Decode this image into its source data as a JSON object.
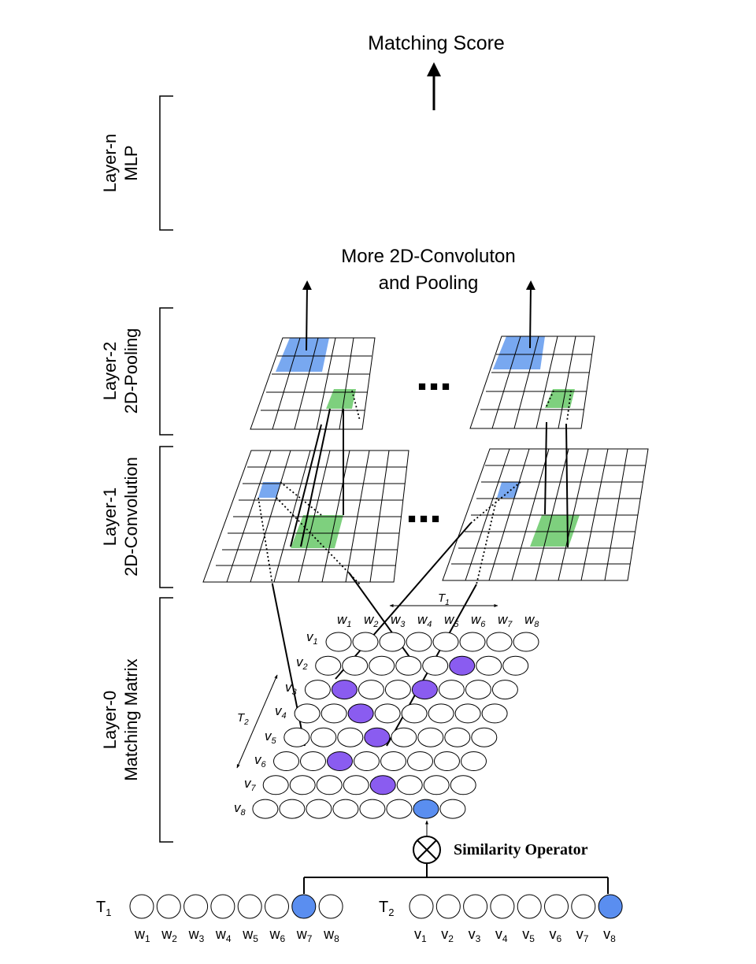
{
  "title": "Matching Score",
  "sub_title_line1": "More 2D-Convoluton",
  "sub_title_line2": "and Pooling",
  "ellipsis": "■ ■ ■",
  "operator_label": "Similarity Operator",
  "layers": [
    {
      "id": "layer-n",
      "line1": "Layer-n",
      "line2": "MLP"
    },
    {
      "id": "layer-2",
      "line1": "Layer-2",
      "line2": "2D-Pooling"
    },
    {
      "id": "layer-1",
      "line1": "Layer-1",
      "line2": "2D-Convolution"
    },
    {
      "id": "layer-0",
      "line1": "Layer-0",
      "line2": "Matching Matrix"
    }
  ],
  "matrix": {
    "t1_label": "T",
    "t1_sub": "1",
    "t2_label": "T",
    "t2_sub": "2",
    "columns": [
      {
        "base": "w",
        "sub": "1"
      },
      {
        "base": "w",
        "sub": "2"
      },
      {
        "base": "w",
        "sub": "3"
      },
      {
        "base": "w",
        "sub": "4"
      },
      {
        "base": "w",
        "sub": "5"
      },
      {
        "base": "w",
        "sub": "6"
      },
      {
        "base": "w",
        "sub": "7"
      },
      {
        "base": "w",
        "sub": "8"
      }
    ],
    "rows": [
      {
        "base": "v",
        "sub": "1"
      },
      {
        "base": "v",
        "sub": "2"
      },
      {
        "base": "v",
        "sub": "3"
      },
      {
        "base": "v",
        "sub": "4"
      },
      {
        "base": "v",
        "sub": "5"
      },
      {
        "base": "v",
        "sub": "6"
      },
      {
        "base": "v",
        "sub": "7"
      },
      {
        "base": "v",
        "sub": "8"
      }
    ]
  },
  "text1": {
    "label": "T",
    "sub": "1",
    "words": [
      {
        "base": "w",
        "sub": "1"
      },
      {
        "base": "w",
        "sub": "2"
      },
      {
        "base": "w",
        "sub": "3"
      },
      {
        "base": "w",
        "sub": "4"
      },
      {
        "base": "w",
        "sub": "5"
      },
      {
        "base": "w",
        "sub": "6"
      },
      {
        "base": "w",
        "sub": "7"
      },
      {
        "base": "w",
        "sub": "8"
      }
    ]
  },
  "text2": {
    "label": "T",
    "sub": "2",
    "words": [
      {
        "base": "v",
        "sub": "1"
      },
      {
        "base": "v",
        "sub": "2"
      },
      {
        "base": "v",
        "sub": "3"
      },
      {
        "base": "v",
        "sub": "4"
      },
      {
        "base": "v",
        "sub": "5"
      },
      {
        "base": "v",
        "sub": "6"
      },
      {
        "base": "v",
        "sub": "7"
      },
      {
        "base": "v",
        "sub": "8"
      }
    ]
  },
  "colors": {
    "blue": "#78a8f0",
    "blue_node": "#5a8ef0",
    "green": "#7ed07e",
    "purple": "#8a5cf0",
    "line": "#000000"
  }
}
